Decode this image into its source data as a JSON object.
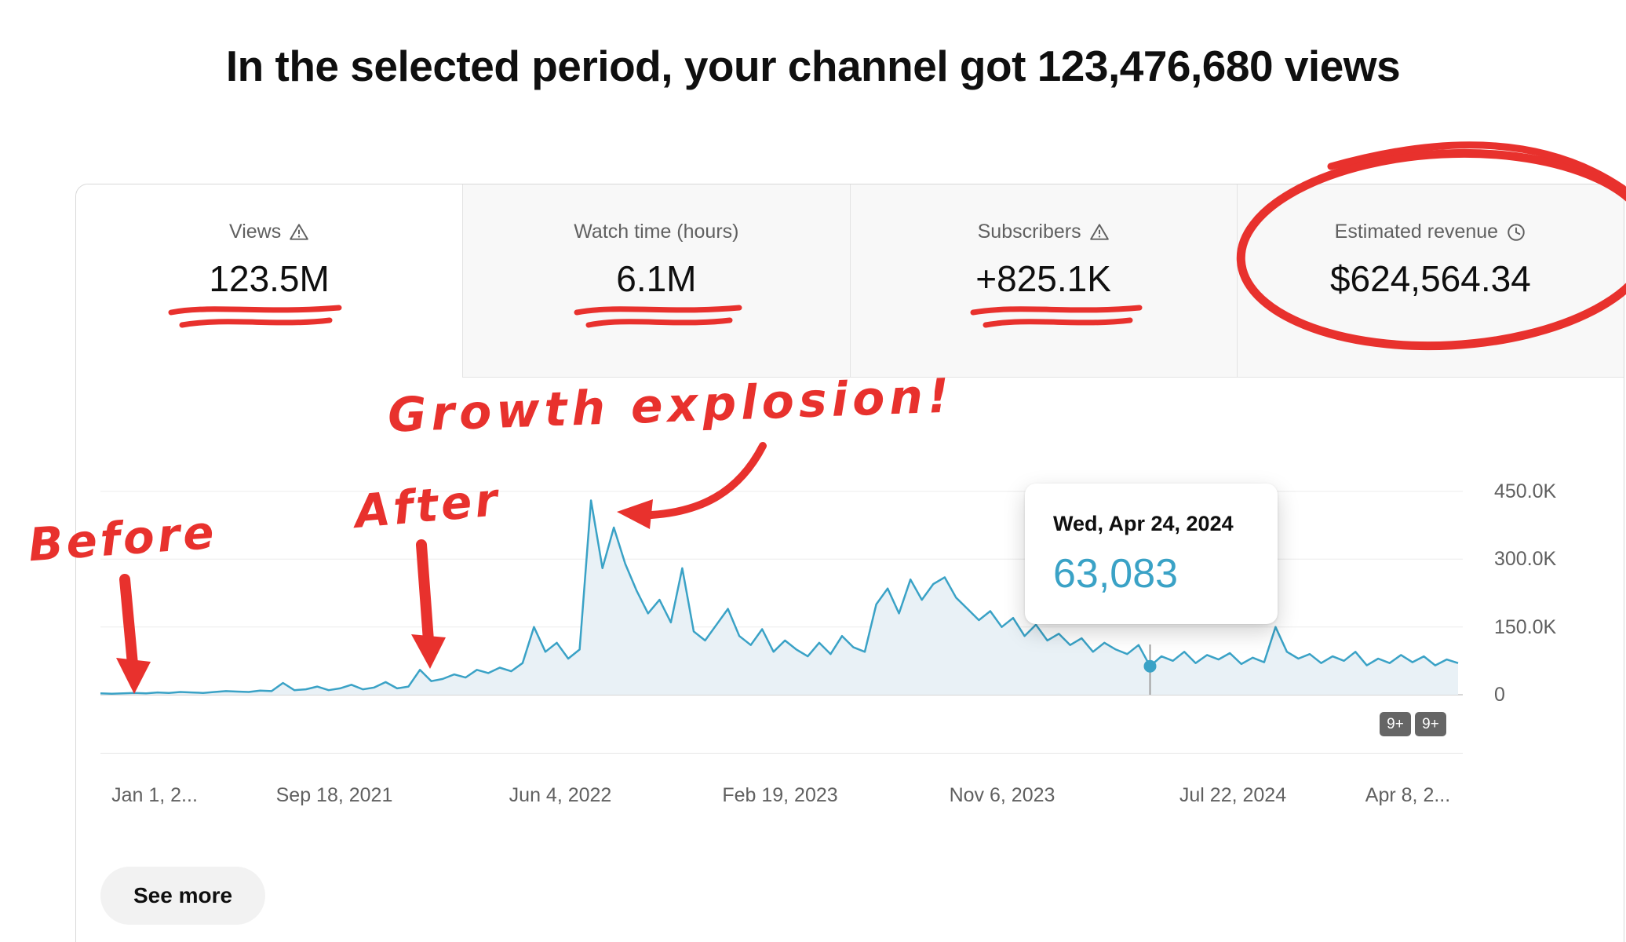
{
  "page": {
    "title": "In the selected period, your channel got 123,476,680 views"
  },
  "metrics": [
    {
      "label": "Views",
      "icon": "warning-icon",
      "value": "123.5M",
      "selected": true,
      "annotation": "red-underline"
    },
    {
      "label": "Watch time (hours)",
      "icon": null,
      "value": "6.1M",
      "selected": false,
      "annotation": "red-underline"
    },
    {
      "label": "Subscribers",
      "icon": "warning-icon",
      "value": "+825.1K",
      "selected": false,
      "annotation": "red-underline"
    },
    {
      "label": "Estimated revenue",
      "icon": "clock-icon",
      "value": "$624,564.34",
      "selected": false,
      "annotation": "red-circle"
    }
  ],
  "annotations": {
    "before_label": "Before",
    "after_label": "After",
    "growth_label": "Growth explosion!",
    "marker_color": "#e8312d"
  },
  "chart_data": {
    "type": "area",
    "title": "Daily channel views over the selected period",
    "x_labels": [
      "Jan 1, 2...",
      "Sep 18, 2021",
      "Jun 4, 2022",
      "Feb 19, 2023",
      "Nov 6, 2023",
      "Jul 22, 2024",
      "Apr 8, 2..."
    ],
    "y_labels": [
      "450.0K",
      "300.0K",
      "150.0K",
      "0"
    ],
    "ylim": [
      0,
      450
    ],
    "y_unit": "thousand views per day",
    "grid": "horizontal",
    "legend": "none",
    "line_color": "#3aa2c6",
    "fill_color": "#e9f1f6",
    "values_k": [
      3,
      2,
      3,
      4,
      3,
      5,
      4,
      6,
      5,
      4,
      6,
      8,
      7,
      6,
      9,
      8,
      26,
      10,
      12,
      18,
      10,
      14,
      22,
      12,
      16,
      28,
      14,
      18,
      55,
      30,
      35,
      45,
      38,
      55,
      48,
      60,
      52,
      70,
      150,
      95,
      115,
      80,
      100,
      430,
      280,
      370,
      290,
      230,
      180,
      210,
      160,
      280,
      140,
      120,
      155,
      190,
      130,
      110,
      145,
      95,
      120,
      100,
      85,
      115,
      90,
      130,
      105,
      95,
      200,
      235,
      180,
      255,
      210,
      245,
      260,
      215,
      190,
      165,
      185,
      150,
      170,
      130,
      155,
      120,
      135,
      110,
      125,
      95,
      115,
      100,
      90,
      110,
      63,
      85,
      75,
      95,
      70,
      88,
      78,
      92,
      68,
      82,
      72,
      150,
      95,
      80,
      90,
      70,
      85,
      75,
      95,
      65,
      80,
      70,
      88,
      72,
      85,
      65,
      78,
      70
    ],
    "highlight": {
      "index": 92,
      "date": "Wed, Apr 24, 2024",
      "value_label": "63,083",
      "value_k": 63
    }
  },
  "badges": [
    "9+",
    "9+"
  ],
  "see_more": "See more"
}
